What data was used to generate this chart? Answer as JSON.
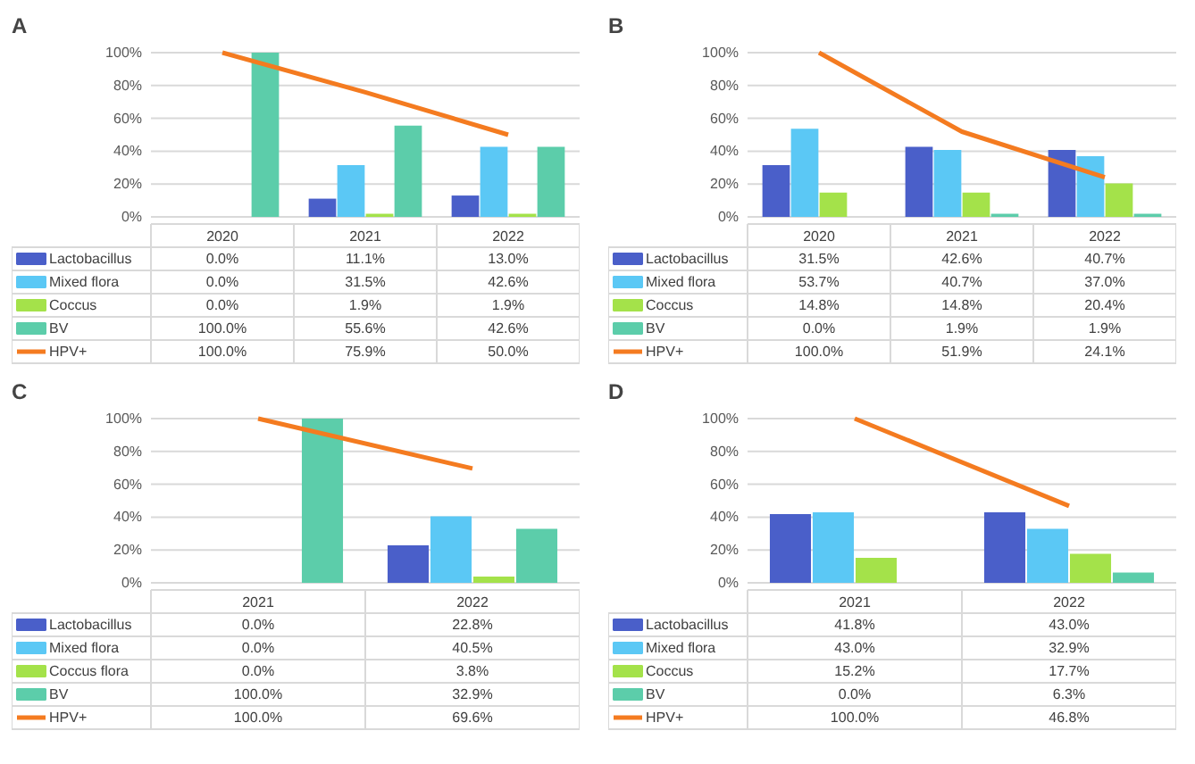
{
  "chart_data": [
    {
      "type": "bar",
      "title": "A",
      "categories": [
        "2020",
        "2021",
        "2022"
      ],
      "ylim": [
        0,
        100
      ],
      "yticks": [
        {
          "value": 0,
          "label": "0%"
        },
        {
          "value": 20,
          "label": "20%"
        },
        {
          "value": 40,
          "label": "40%"
        },
        {
          "value": 60,
          "label": "60%"
        },
        {
          "value": 80,
          "label": "80%"
        },
        {
          "value": 100,
          "label": "100%"
        }
      ],
      "grid": "y",
      "legend": "bottom",
      "series": [
        {
          "name": "Lactobacillus",
          "color": "#4a5fc9",
          "values": [
            0.0,
            11.1,
            13.0
          ],
          "value_labels": [
            "0.0%",
            "11.1%",
            "13.0%"
          ]
        },
        {
          "name": "Mixed flora",
          "color": "#5bc8f5",
          "values": [
            0.0,
            31.5,
            42.6
          ],
          "value_labels": [
            "0.0%",
            "31.5%",
            "42.6%"
          ]
        },
        {
          "name": "Coccus",
          "color": "#a4e24a",
          "values": [
            0.0,
            1.9,
            1.9
          ],
          "value_labels": [
            "0.0%",
            "1.9%",
            "1.9%"
          ]
        },
        {
          "name": "BV",
          "color": "#5ccdaa",
          "values": [
            100.0,
            55.6,
            42.6
          ],
          "value_labels": [
            "100.0%",
            "55.6%",
            "42.6%"
          ]
        },
        {
          "name": "HPV+",
          "type": "line",
          "color": "#f47b20",
          "values": [
            100.0,
            75.9,
            50.0
          ],
          "value_labels": [
            "100.0%",
            "75.9%",
            "50.0%"
          ]
        }
      ]
    },
    {
      "type": "bar",
      "title": "B",
      "categories": [
        "2020",
        "2021",
        "2022"
      ],
      "ylim": [
        0,
        100
      ],
      "yticks": [
        {
          "value": 0,
          "label": "0%"
        },
        {
          "value": 20,
          "label": "20%"
        },
        {
          "value": 40,
          "label": "40%"
        },
        {
          "value": 60,
          "label": "60%"
        },
        {
          "value": 80,
          "label": "80%"
        },
        {
          "value": 100,
          "label": "100%"
        }
      ],
      "grid": "y",
      "legend": "bottom",
      "series": [
        {
          "name": "Lactobacillus",
          "color": "#4a5fc9",
          "values": [
            31.5,
            42.6,
            40.7
          ],
          "value_labels": [
            "31.5%",
            "42.6%",
            "40.7%"
          ]
        },
        {
          "name": "Mixed flora",
          "color": "#5bc8f5",
          "values": [
            53.7,
            40.7,
            37.0
          ],
          "value_labels": [
            "53.7%",
            "40.7%",
            "37.0%"
          ]
        },
        {
          "name": "Coccus",
          "color": "#a4e24a",
          "values": [
            14.8,
            14.8,
            20.4
          ],
          "value_labels": [
            "14.8%",
            "14.8%",
            "20.4%"
          ]
        },
        {
          "name": "BV",
          "color": "#5ccdaa",
          "values": [
            0.0,
            1.9,
            1.9
          ],
          "value_labels": [
            "0.0%",
            "1.9%",
            "1.9%"
          ]
        },
        {
          "name": "HPV+",
          "type": "line",
          "color": "#f47b20",
          "values": [
            100.0,
            51.9,
            24.1
          ],
          "value_labels": [
            "100.0%",
            "51.9%",
            "24.1%"
          ]
        }
      ]
    },
    {
      "type": "bar",
      "title": "C",
      "categories": [
        "2021",
        "2022"
      ],
      "ylim": [
        0,
        100
      ],
      "yticks": [
        {
          "value": 0,
          "label": "0%"
        },
        {
          "value": 20,
          "label": "20%"
        },
        {
          "value": 40,
          "label": "40%"
        },
        {
          "value": 60,
          "label": "60%"
        },
        {
          "value": 80,
          "label": "80%"
        },
        {
          "value": 100,
          "label": "100%"
        }
      ],
      "grid": "y",
      "legend": "bottom",
      "series": [
        {
          "name": "Lactobacillus",
          "color": "#4a5fc9",
          "values": [
            0.0,
            22.8
          ],
          "value_labels": [
            "0.0%",
            "22.8%"
          ]
        },
        {
          "name": "Mixed flora",
          "color": "#5bc8f5",
          "values": [
            0.0,
            40.5
          ],
          "value_labels": [
            "0.0%",
            "40.5%"
          ]
        },
        {
          "name": "Coccus flora",
          "color": "#a4e24a",
          "values": [
            0.0,
            3.8
          ],
          "value_labels": [
            "0.0%",
            "3.8%"
          ]
        },
        {
          "name": "BV",
          "color": "#5ccdaa",
          "values": [
            100.0,
            32.9
          ],
          "value_labels": [
            "100.0%",
            "32.9%"
          ]
        },
        {
          "name": "HPV+",
          "type": "line",
          "color": "#f47b20",
          "values": [
            100.0,
            69.6
          ],
          "value_labels": [
            "100.0%",
            "69.6%"
          ]
        }
      ]
    },
    {
      "type": "bar",
      "title": "D",
      "categories": [
        "2021",
        "2022"
      ],
      "ylim": [
        0,
        100
      ],
      "yticks": [
        {
          "value": 0,
          "label": "0%"
        },
        {
          "value": 20,
          "label": "20%"
        },
        {
          "value": 40,
          "label": "40%"
        },
        {
          "value": 60,
          "label": "60%"
        },
        {
          "value": 80,
          "label": "80%"
        },
        {
          "value": 100,
          "label": "100%"
        }
      ],
      "grid": "y",
      "legend": "bottom",
      "series": [
        {
          "name": "Lactobacillus",
          "color": "#4a5fc9",
          "values": [
            41.8,
            43.0
          ],
          "value_labels": [
            "41.8%",
            "43.0%"
          ]
        },
        {
          "name": "Mixed flora",
          "color": "#5bc8f5",
          "values": [
            43.0,
            32.9
          ],
          "value_labels": [
            "43.0%",
            "32.9%"
          ]
        },
        {
          "name": "Coccus",
          "color": "#a4e24a",
          "values": [
            15.2,
            17.7
          ],
          "value_labels": [
            "15.2%",
            "17.7%"
          ]
        },
        {
          "name": "BV",
          "color": "#5ccdaa",
          "values": [
            0.0,
            6.3
          ],
          "value_labels": [
            "0.0%",
            "6.3%"
          ]
        },
        {
          "name": "HPV+",
          "type": "line",
          "color": "#f47b20",
          "values": [
            100.0,
            46.8
          ],
          "value_labels": [
            "100.0%",
            "46.8%"
          ]
        }
      ]
    }
  ]
}
